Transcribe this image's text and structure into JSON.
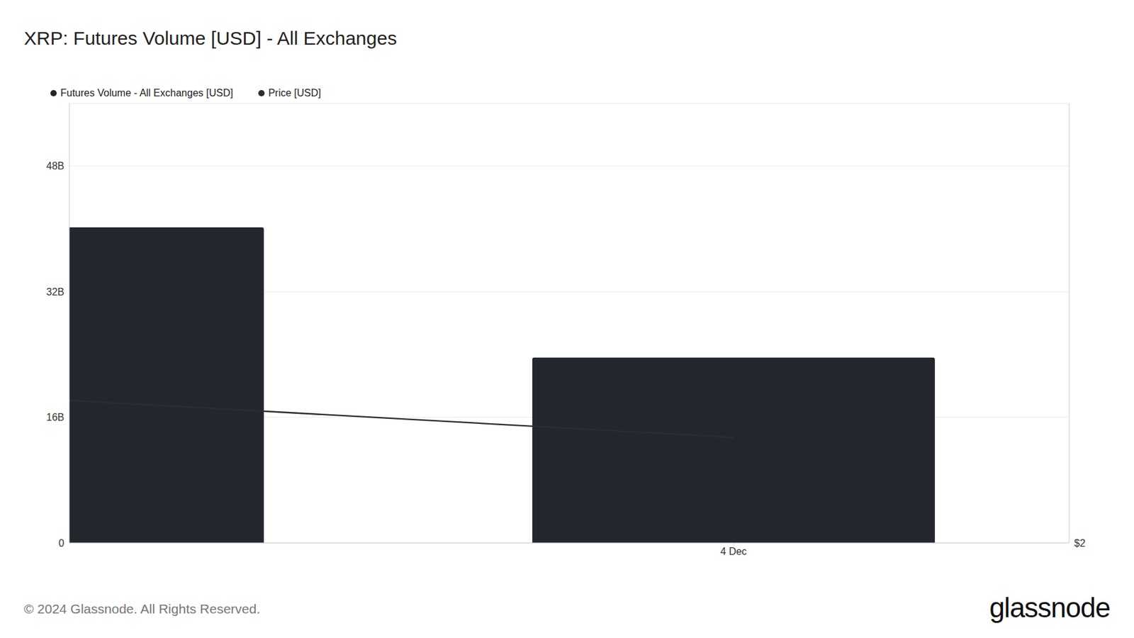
{
  "chart_data": {
    "type": "bar",
    "title": "XRP: Futures Volume [USD] - All Exchanges",
    "categories": [
      null,
      "4 Dec"
    ],
    "series": [
      {
        "name": "Futures Volume - All Exchanges [USD]",
        "type": "bar",
        "color": "#23272d",
        "values": [
          40.2,
          23.6
        ]
      },
      {
        "name": "Price [USD]",
        "type": "line",
        "color": "#2d2d2d",
        "axis": "y2",
        "values": [
          2.325,
          2.24
        ]
      }
    ],
    "xlim": [
      0.01,
      1.5
    ],
    "xticks": [
      {
        "value": 1,
        "label": "4 Dec"
      }
    ],
    "ylim": [
      0,
      56
    ],
    "yticks": [
      0,
      {
        "value": 16,
        "label": "16B"
      },
      {
        "value": 32,
        "label": "32B"
      },
      {
        "value": 48,
        "label": "48B"
      }
    ],
    "y2lim": [
      2,
      3
    ],
    "y2ticks": [
      {
        "value": 2,
        "label": "$2"
      }
    ],
    "grid": true,
    "legend": "top-left",
    "annotations": [
      "© 2024 Glassnode. All Rights Reserved.",
      "glassnode"
    ]
  }
}
